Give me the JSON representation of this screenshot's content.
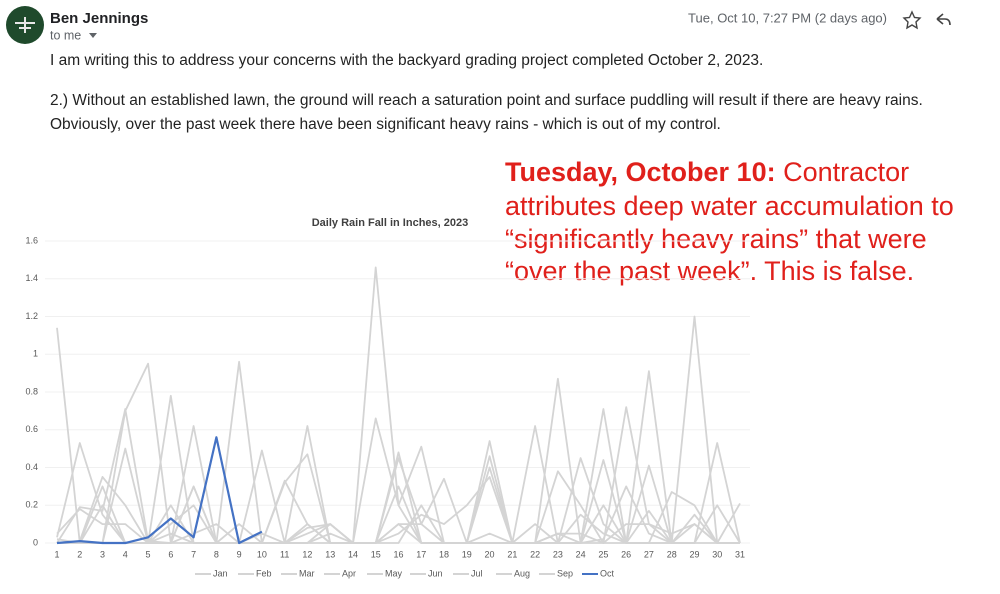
{
  "email": {
    "sender": "Ben Jennings",
    "recipient": "to me",
    "date": "Tue, Oct 10, 7:27 PM (2 days ago)",
    "body": [
      "I am writing this to address your concerns with the backyard grading project completed October 2, 2023.",
      "2.) Without an established lawn, the ground will reach a saturation point and surface puddling will result if there are heavy rains.",
      "Obviously, over the past week there have been significant heavy rains - which is out of my control."
    ]
  },
  "annotation": {
    "heading": "Tuesday, October 10:",
    "lines": [
      " Contractor",
      "attributes deep water accumulation to",
      "“significantly heavy rains” that were",
      "“over the past week”. This is false."
    ]
  },
  "chart_data": {
    "type": "line",
    "title": "Daily Rain Fall in Inches, 2023",
    "categories": [
      "1",
      "2",
      "3",
      "4",
      "5",
      "6",
      "7",
      "8",
      "9",
      "10",
      "11",
      "12",
      "13",
      "14",
      "15",
      "16",
      "17",
      "18",
      "19",
      "20",
      "21",
      "22",
      "23",
      "24",
      "25",
      "26",
      "27",
      "28",
      "29",
      "30",
      "31"
    ],
    "ylim": [
      0,
      1.6
    ],
    "yticks": [
      0,
      0.2,
      0.4,
      0.6,
      0.8,
      1,
      1.2,
      1.4,
      1.6
    ],
    "grid": true,
    "series": [
      {
        "name": "Jan",
        "color": "#d4d4d4",
        "values": [
          1.14,
          0,
          0,
          0.7,
          0.95,
          0,
          0,
          0,
          0.96,
          0,
          0.33,
          0.1,
          0,
          0,
          1.46,
          0.2,
          0,
          0,
          0,
          0.05,
          0,
          0,
          0.87,
          0,
          0,
          0,
          0.91,
          0,
          1.2,
          0,
          0
        ]
      },
      {
        "name": "Feb",
        "color": "#d4d4d4",
        "values": [
          0.03,
          0.53,
          0.15,
          0,
          0,
          0.78,
          0,
          0,
          0,
          0.49,
          0,
          0.62,
          0,
          0,
          0,
          0.48,
          0,
          0,
          0,
          0.54,
          0,
          0.62,
          0,
          0,
          0.71,
          0,
          0,
          0,
          null,
          null,
          null
        ]
      },
      {
        "name": "Mar",
        "color": "#d4d4d4",
        "values": [
          0,
          0.19,
          0.17,
          0.71,
          0.01,
          0,
          0.62,
          0,
          0,
          0,
          0,
          0,
          0.1,
          0,
          0.66,
          0.2,
          0.51,
          0,
          0,
          0,
          0,
          0,
          0.38,
          0.2,
          0,
          0.72,
          0.1,
          0,
          0,
          0.53,
          0
        ]
      },
      {
        "name": "Apr",
        "color": "#d4d4d4",
        "values": [
          0,
          0.01,
          0.35,
          0.2,
          0,
          0.2,
          0,
          0,
          0,
          0,
          0.32,
          0.47,
          0,
          0,
          0,
          0.45,
          0.1,
          0.34,
          0,
          0.46,
          0,
          0,
          0,
          0.45,
          0.1,
          0,
          0.41,
          0,
          0.1,
          0,
          0
        ]
      },
      {
        "name": "May",
        "color": "#d4d4d4",
        "values": [
          0.02,
          0,
          0.3,
          0,
          0,
          0,
          0.3,
          0,
          0,
          0.05,
          0,
          0.1,
          0,
          0,
          0,
          0,
          0.2,
          0,
          0,
          0,
          0,
          0.1,
          0,
          0,
          0.02,
          0.3,
          0.05,
          0,
          0.15,
          0,
          0
        ]
      },
      {
        "name": "Jun",
        "color": "#d4d4d4",
        "values": [
          0,
          0,
          0,
          0.5,
          0,
          0,
          0.05,
          0.1,
          0,
          0,
          0,
          0.05,
          0.1,
          0,
          0,
          0.05,
          0.15,
          0.1,
          0.2,
          0.35,
          0,
          0,
          0,
          0,
          0.44,
          0,
          0,
          0.27,
          0.2,
          0,
          0.21
        ]
      },
      {
        "name": "Jul",
        "color": "#d4d4d4",
        "values": [
          0,
          0,
          0.2,
          0,
          0,
          0,
          0.3,
          0,
          0,
          0,
          0,
          0,
          0.05,
          0,
          0,
          0.3,
          0,
          0,
          0,
          0.4,
          0,
          0,
          0.05,
          0,
          0.2,
          0,
          0.17,
          0,
          0,
          0.2,
          0
        ]
      },
      {
        "name": "Aug",
        "color": "#d4d4d4",
        "values": [
          0.05,
          0.18,
          0.1,
          0.1,
          0,
          0.05,
          0,
          0,
          0.1,
          0,
          0,
          0.08,
          0.1,
          0,
          0,
          0.1,
          0.1,
          0,
          0,
          0,
          0,
          0,
          0.05,
          0.05,
          0,
          0.1,
          0.1,
          0.05,
          0.1,
          0,
          0
        ]
      },
      {
        "name": "Sep",
        "color": "#d4d4d4",
        "values": [
          0,
          0,
          0,
          0,
          0,
          0.1,
          0.2,
          0,
          0,
          0,
          0,
          0,
          0,
          0,
          0,
          0.1,
          0,
          0,
          0,
          0,
          0,
          0,
          0,
          0.15,
          0.05,
          0,
          0,
          0,
          0,
          0,
          null
        ]
      },
      {
        "name": "Oct",
        "color": "#4472c4",
        "values": [
          0,
          0.01,
          0,
          0,
          0.03,
          0.13,
          0.03,
          0.56,
          0,
          0.06,
          null,
          null,
          null,
          null,
          null,
          null,
          null,
          null,
          null,
          null,
          null,
          null,
          null,
          null,
          null,
          null,
          null,
          null,
          null,
          null,
          null
        ]
      }
    ]
  }
}
